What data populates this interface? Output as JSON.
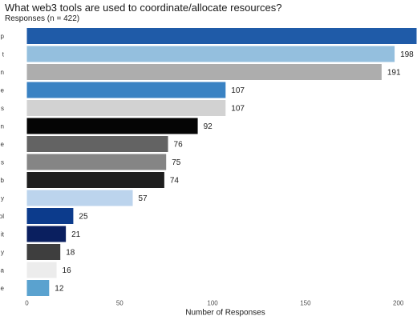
{
  "chart_data": {
    "type": "bar",
    "orientation": "horizontal",
    "title": "What web3 tools are used to coordinate/allocate resources?",
    "subtitle": "Responses (n = 422)",
    "xlabel": "Number of Responses",
    "ylabel": "",
    "xlim": [
      0,
      210
    ],
    "xticks": [
      0,
      50,
      100,
      150,
      200
    ],
    "grid": false,
    "categories": [
      "p",
      "t",
      "n",
      "e",
      "s",
      "n",
      "e",
      "s",
      "b",
      "y",
      "ol",
      "it",
      "y",
      "a",
      "e"
    ],
    "values": [
      210,
      198,
      191,
      107,
      107,
      92,
      76,
      75,
      74,
      57,
      25,
      21,
      18,
      16,
      12
    ],
    "value_labels": [
      "",
      "198",
      "191",
      "107",
      "107",
      "92",
      "76",
      "75",
      "74",
      "57",
      "25",
      "21",
      "18",
      "16",
      "12"
    ],
    "colors": [
      "#1f5ba8",
      "#94bfde",
      "#adadad",
      "#3a82c3",
      "#d2d2d2",
      "#050505",
      "#636363",
      "#858585",
      "#1e1e1e",
      "#bcd4ed",
      "#0c3b8c",
      "#0a1f5f",
      "#3e3e3e",
      "#ececec",
      "#5aa2cf"
    ]
  }
}
